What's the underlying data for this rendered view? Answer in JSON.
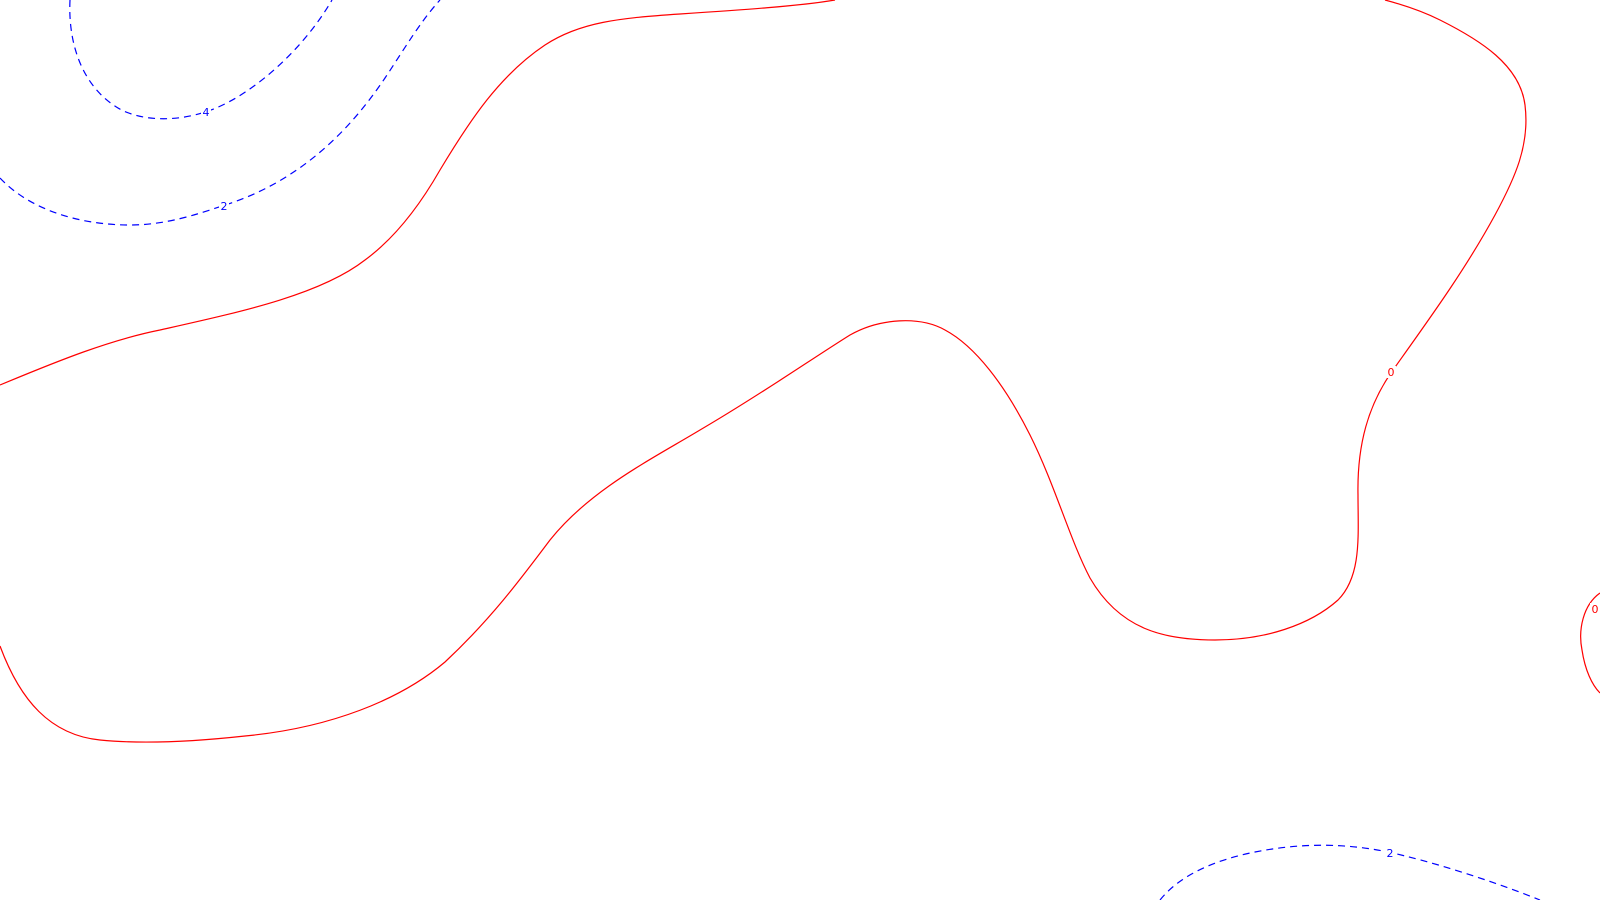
{
  "map": {
    "background": "#ffffff",
    "contour_colors": {
      "zero": "#ff0000",
      "positive": "#0000ff"
    },
    "contour_levels": [
      {
        "level": "4",
        "style": "dashed",
        "color": "#0000ff"
      },
      {
        "level": "2",
        "style": "dashed",
        "color": "#0000ff"
      },
      {
        "level": "0",
        "style": "solid",
        "color": "#ff0000"
      }
    ],
    "labels": {
      "top_left_4": "4",
      "top_left_2": "2",
      "right_0": "0",
      "far_right_0": "0",
      "bottom_right_2": "2"
    }
  }
}
